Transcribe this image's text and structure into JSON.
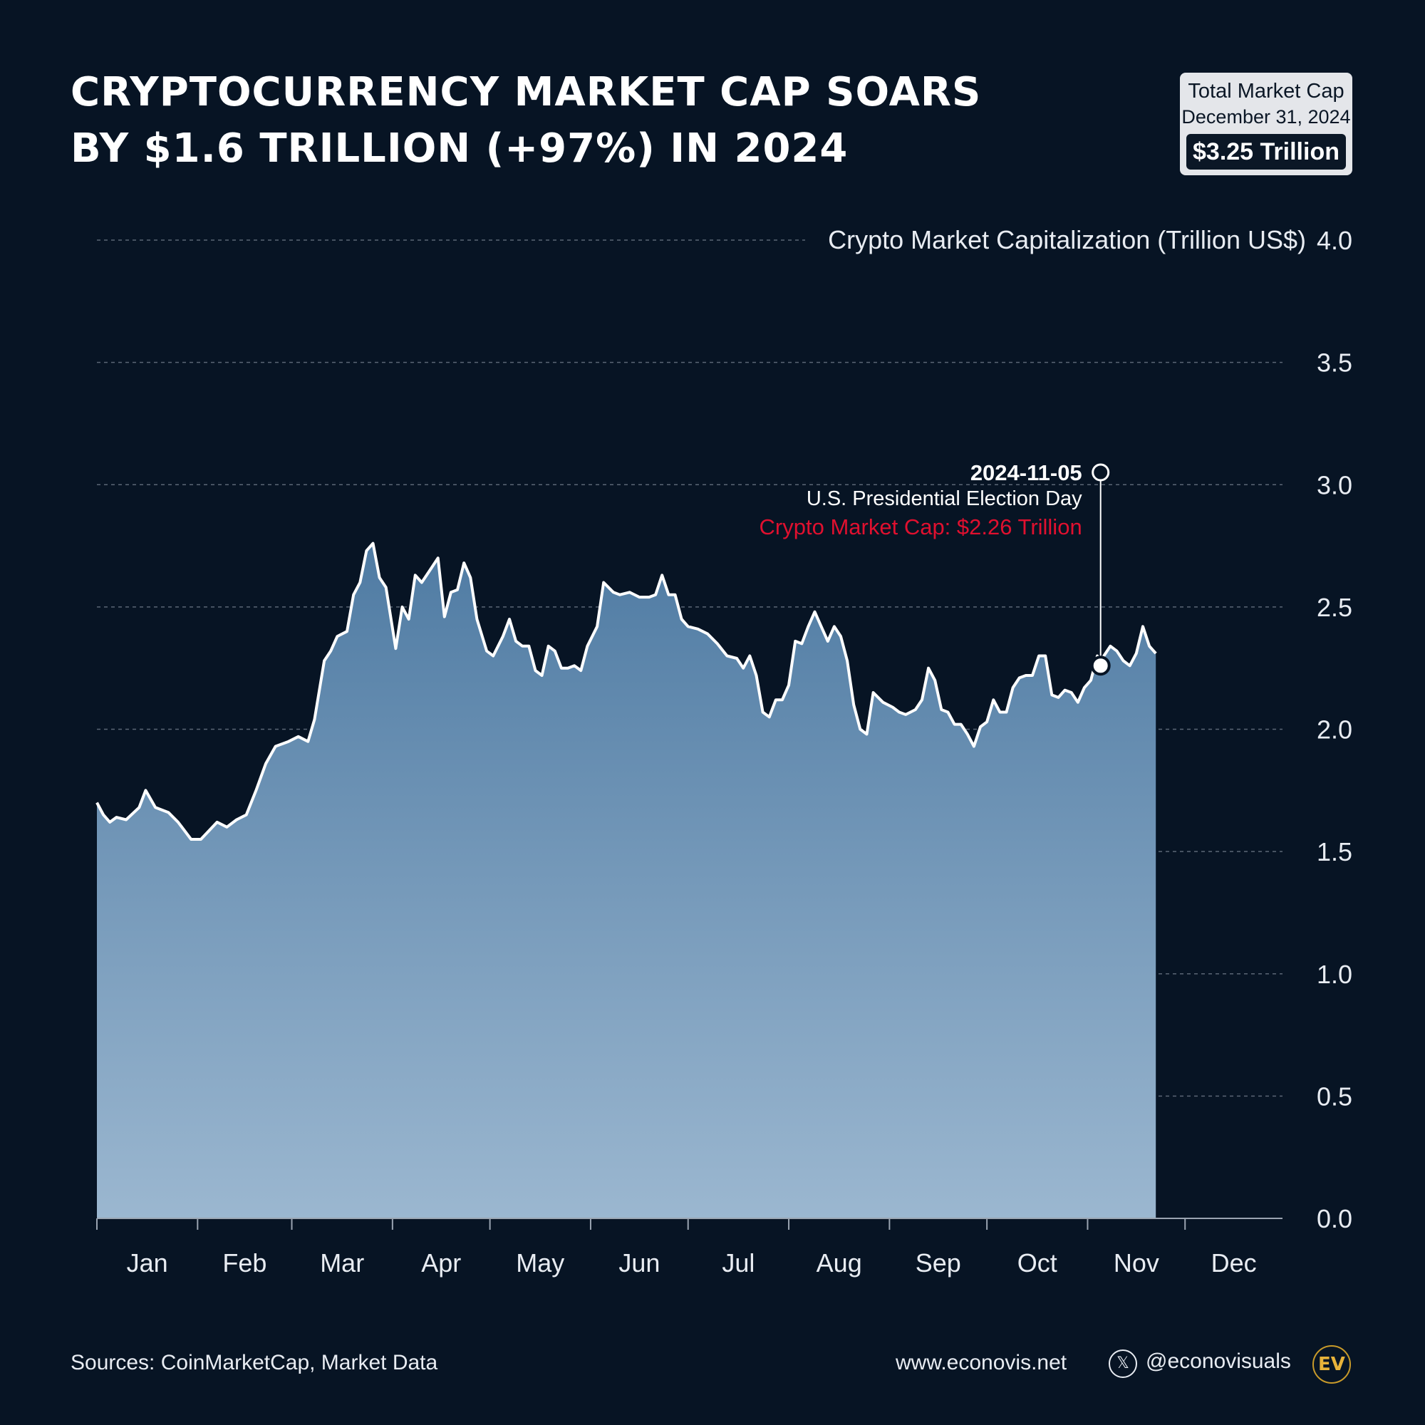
{
  "title": {
    "line1": "CRYPTOCURRENCY MARKET CAP SOARS",
    "line2": "BY $1.6 TRILLION (+97%) IN 2024"
  },
  "badge": {
    "line1": "Total Market Cap",
    "line2": "December 31, 2024",
    "value": "$3.25 Trillion"
  },
  "annotation": {
    "date": "2024-11-05",
    "event": "U.S. Presidential Election Day",
    "value_label": "Crypto Market Cap: $2.26 Trillion",
    "day_of_year": 310,
    "value": 2.26
  },
  "footer": {
    "sources": "Sources: CoinMarketCap, Market Data",
    "website": "www.econovis.net",
    "x_icon": "x-logo-icon",
    "handle": "@econovisuals",
    "logo_text": "EV"
  },
  "colors": {
    "background": "#071424",
    "line": "#ffffff",
    "area_top": "#5682a8",
    "area_bottom": "#9bb7d0",
    "annotation_red": "#e0102f",
    "grid": "#5b6675"
  },
  "chart_data": {
    "type": "area",
    "ylabel": "Crypto Market Capitalization (Trillion US$)",
    "ylim": [
      0,
      4
    ],
    "yticks": [
      "0.0",
      "0.5",
      "1.0",
      "1.5",
      "2.0",
      "2.5",
      "3.0",
      "3.5",
      "4.0"
    ],
    "ytick_values": [
      0,
      0.5,
      1,
      1.5,
      2,
      2.5,
      3,
      3.5,
      4
    ],
    "months": [
      "Jan",
      "Feb",
      "Mar",
      "Apr",
      "May",
      "Jun",
      "Jul",
      "Aug",
      "Sep",
      "Oct",
      "Nov",
      "Dec"
    ],
    "grid": "dashed horizontal",
    "series": [
      {
        "points": [
          [
            1,
            1.7
          ],
          [
            3,
            1.65
          ],
          [
            5,
            1.62
          ],
          [
            7,
            1.64
          ],
          [
            10,
            1.63
          ],
          [
            14,
            1.68
          ],
          [
            16,
            1.75
          ],
          [
            19,
            1.68
          ],
          [
            23,
            1.66
          ],
          [
            26,
            1.62
          ],
          [
            30,
            1.55
          ],
          [
            33,
            1.55
          ],
          [
            38,
            1.62
          ],
          [
            41,
            1.6
          ],
          [
            44,
            1.63
          ],
          [
            47,
            1.65
          ],
          [
            50,
            1.75
          ],
          [
            53,
            1.86
          ],
          [
            56,
            1.93
          ],
          [
            60,
            1.95
          ],
          [
            63,
            1.97
          ],
          [
            66,
            1.95
          ],
          [
            68,
            2.04
          ],
          [
            71,
            2.28
          ],
          [
            73,
            2.32
          ],
          [
            75,
            2.38
          ],
          [
            78,
            2.4
          ],
          [
            80,
            2.55
          ],
          [
            82,
            2.6
          ],
          [
            84,
            2.73
          ],
          [
            86,
            2.76
          ],
          [
            88,
            2.62
          ],
          [
            90,
            2.58
          ],
          [
            93,
            2.33
          ],
          [
            95,
            2.5
          ],
          [
            97,
            2.45
          ],
          [
            99,
            2.63
          ],
          [
            101,
            2.6
          ],
          [
            104,
            2.66
          ],
          [
            106,
            2.7
          ],
          [
            108,
            2.46
          ],
          [
            110,
            2.56
          ],
          [
            112,
            2.57
          ],
          [
            114,
            2.68
          ],
          [
            116,
            2.62
          ],
          [
            118,
            2.45
          ],
          [
            121,
            2.32
          ],
          [
            123,
            2.3
          ],
          [
            126,
            2.38
          ],
          [
            128,
            2.45
          ],
          [
            130,
            2.36
          ],
          [
            132,
            2.34
          ],
          [
            134,
            2.34
          ],
          [
            136,
            2.24
          ],
          [
            138,
            2.22
          ],
          [
            140,
            2.34
          ],
          [
            142,
            2.32
          ],
          [
            144,
            2.25
          ],
          [
            146,
            2.25
          ],
          [
            148,
            2.26
          ],
          [
            150,
            2.24
          ],
          [
            152,
            2.34
          ],
          [
            155,
            2.42
          ],
          [
            157,
            2.6
          ],
          [
            160,
            2.56
          ],
          [
            162,
            2.55
          ],
          [
            165,
            2.56
          ],
          [
            168,
            2.54
          ],
          [
            171,
            2.54
          ],
          [
            173,
            2.55
          ],
          [
            175,
            2.63
          ],
          [
            177,
            2.55
          ],
          [
            179,
            2.55
          ],
          [
            181,
            2.45
          ],
          [
            183,
            2.42
          ],
          [
            186,
            2.41
          ],
          [
            189,
            2.39
          ],
          [
            192,
            2.35
          ],
          [
            195,
            2.3
          ],
          [
            198,
            2.29
          ],
          [
            200,
            2.25
          ],
          [
            202,
            2.3
          ],
          [
            204,
            2.22
          ],
          [
            206,
            2.07
          ],
          [
            208,
            2.05
          ],
          [
            210,
            2.12
          ],
          [
            212,
            2.12
          ],
          [
            214,
            2.18
          ],
          [
            216,
            2.36
          ],
          [
            218,
            2.35
          ],
          [
            220,
            2.42
          ],
          [
            222,
            2.48
          ],
          [
            224,
            2.42
          ],
          [
            226,
            2.36
          ],
          [
            228,
            2.42
          ],
          [
            230,
            2.38
          ],
          [
            232,
            2.28
          ],
          [
            234,
            2.1
          ],
          [
            236,
            2.0
          ],
          [
            238,
            1.98
          ],
          [
            240,
            2.15
          ],
          [
            243,
            2.11
          ],
          [
            246,
            2.09
          ],
          [
            248,
            2.07
          ],
          [
            250,
            2.06
          ],
          [
            253,
            2.08
          ],
          [
            255,
            2.12
          ],
          [
            257,
            2.25
          ],
          [
            259,
            2.2
          ],
          [
            261,
            2.08
          ],
          [
            263,
            2.07
          ],
          [
            265,
            2.02
          ],
          [
            267,
            2.02
          ],
          [
            269,
            1.98
          ],
          [
            271,
            1.93
          ],
          [
            273,
            2.01
          ],
          [
            275,
            2.03
          ],
          [
            277,
            2.12
          ],
          [
            279,
            2.07
          ],
          [
            281,
            2.07
          ],
          [
            283,
            2.17
          ],
          [
            285,
            2.21
          ],
          [
            287,
            2.22
          ],
          [
            289,
            2.22
          ],
          [
            291,
            2.3
          ],
          [
            293,
            2.3
          ],
          [
            295,
            2.14
          ],
          [
            297,
            2.13
          ],
          [
            299,
            2.16
          ],
          [
            301,
            2.15
          ],
          [
            303,
            2.11
          ],
          [
            305,
            2.17
          ],
          [
            307,
            2.2
          ],
          [
            309,
            2.3
          ],
          [
            311,
            2.3
          ],
          [
            313,
            2.34
          ],
          [
            315,
            2.32
          ],
          [
            317,
            2.28
          ],
          [
            319,
            2.26
          ],
          [
            321,
            2.31
          ],
          [
            323,
            2.42
          ],
          [
            325,
            2.34
          ],
          [
            327,
            2.31
          ],
          [
            310,
            2.26
          ]
        ]
      }
    ]
  }
}
